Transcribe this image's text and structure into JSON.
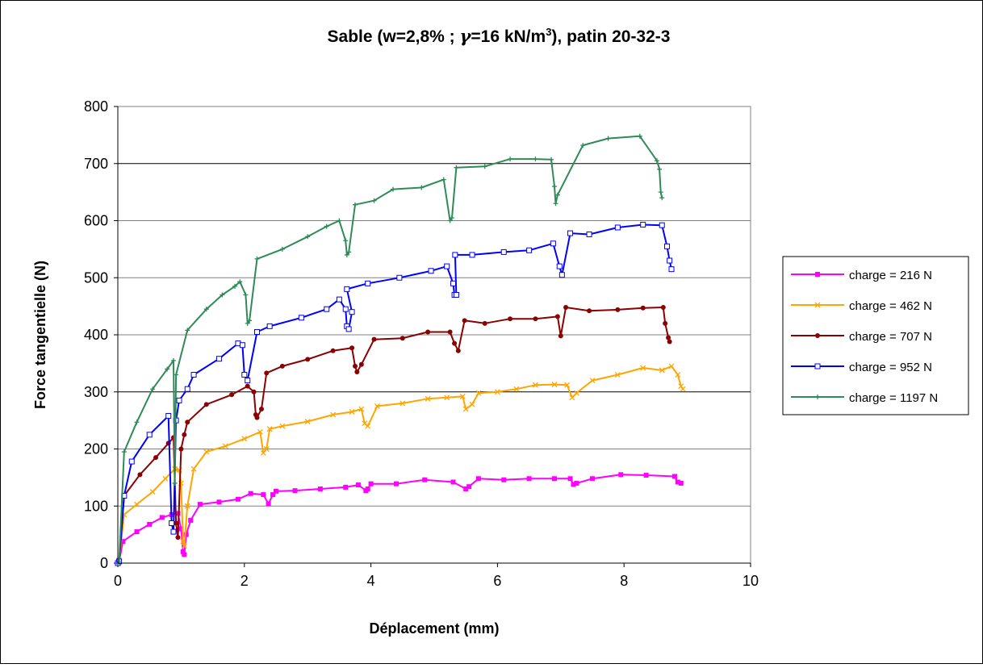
{
  "chart_data": {
    "type": "line",
    "title": "Sable (w=2,8% ; γ=16 kN/m³), patin 20-32-3",
    "title_parts": {
      "main": "Sable (w=2,8% ; ",
      "gamma": "γ",
      "eq": "=16 kN/m",
      "sup": "3",
      "tail": "), patin 20-32-3"
    },
    "xlabel": "Déplacement (mm)",
    "ylabel": "Force tangentielle (N)",
    "xlim": [
      0,
      10
    ],
    "ylim": [
      0,
      800
    ],
    "x_ticks": [
      "0",
      "2",
      "4",
      "6",
      "8",
      "10"
    ],
    "y_ticks": [
      "0",
      "100",
      "200",
      "300",
      "400",
      "500",
      "600",
      "700",
      "800"
    ],
    "grid": "horizontal",
    "legend_position": "right",
    "series": [
      {
        "name": "charge = 216 N",
        "color": "#ff00ff",
        "marker": "square",
        "points": [
          [
            0,
            0
          ],
          [
            0.02,
            3
          ],
          [
            0.08,
            38
          ],
          [
            0.3,
            55
          ],
          [
            0.5,
            68
          ],
          [
            0.7,
            80
          ],
          [
            0.85,
            85
          ],
          [
            0.95,
            87
          ],
          [
            1.0,
            60
          ],
          [
            1.03,
            20
          ],
          [
            1.05,
            15
          ],
          [
            1.08,
            50
          ],
          [
            1.15,
            75
          ],
          [
            1.3,
            103
          ],
          [
            1.6,
            107
          ],
          [
            1.9,
            112
          ],
          [
            2.1,
            122
          ],
          [
            2.3,
            120
          ],
          [
            2.38,
            104
          ],
          [
            2.45,
            120
          ],
          [
            2.5,
            126
          ],
          [
            2.8,
            127
          ],
          [
            3.2,
            130
          ],
          [
            3.6,
            133
          ],
          [
            3.8,
            137
          ],
          [
            3.92,
            127
          ],
          [
            3.95,
            130
          ],
          [
            4.0,
            139
          ],
          [
            4.4,
            139
          ],
          [
            4.85,
            146
          ],
          [
            5.3,
            142
          ],
          [
            5.5,
            130
          ],
          [
            5.55,
            134
          ],
          [
            5.7,
            148
          ],
          [
            6.1,
            146
          ],
          [
            6.5,
            148
          ],
          [
            6.9,
            148
          ],
          [
            7.15,
            148
          ],
          [
            7.2,
            138
          ],
          [
            7.25,
            140
          ],
          [
            7.5,
            148
          ],
          [
            7.95,
            155
          ],
          [
            8.35,
            154
          ],
          [
            8.8,
            152
          ],
          [
            8.85,
            142
          ],
          [
            8.9,
            140
          ]
        ]
      },
      {
        "name": "charge = 462 N",
        "color": "#ffa500",
        "marker": "x",
        "points": [
          [
            0,
            0
          ],
          [
            0.02,
            5
          ],
          [
            0.1,
            85
          ],
          [
            0.3,
            103
          ],
          [
            0.55,
            125
          ],
          [
            0.75,
            148
          ],
          [
            0.9,
            165
          ],
          [
            0.97,
            163
          ],
          [
            1.0,
            140
          ],
          [
            1.03,
            38
          ],
          [
            1.05,
            30
          ],
          [
            1.1,
            100
          ],
          [
            1.2,
            165
          ],
          [
            1.4,
            195
          ],
          [
            1.7,
            205
          ],
          [
            2.0,
            218
          ],
          [
            2.25,
            230
          ],
          [
            2.3,
            193
          ],
          [
            2.35,
            200
          ],
          [
            2.4,
            235
          ],
          [
            2.6,
            240
          ],
          [
            3.0,
            248
          ],
          [
            3.4,
            260
          ],
          [
            3.7,
            265
          ],
          [
            3.85,
            270
          ],
          [
            3.9,
            245
          ],
          [
            3.95,
            240
          ],
          [
            4.1,
            275
          ],
          [
            4.5,
            280
          ],
          [
            4.9,
            288
          ],
          [
            5.2,
            290
          ],
          [
            5.45,
            292
          ],
          [
            5.5,
            270
          ],
          [
            5.6,
            278
          ],
          [
            5.7,
            298
          ],
          [
            6.0,
            300
          ],
          [
            6.3,
            305
          ],
          [
            6.6,
            312
          ],
          [
            6.9,
            313
          ],
          [
            7.1,
            312
          ],
          [
            7.18,
            290
          ],
          [
            7.25,
            298
          ],
          [
            7.5,
            320
          ],
          [
            7.9,
            330
          ],
          [
            8.3,
            342
          ],
          [
            8.6,
            338
          ],
          [
            8.75,
            345
          ],
          [
            8.85,
            330
          ],
          [
            8.9,
            310
          ],
          [
            8.93,
            305
          ]
        ]
      },
      {
        "name": "charge = 707 N",
        "color": "#8b0000",
        "marker": "circle",
        "points": [
          [
            0,
            0
          ],
          [
            0.02,
            3
          ],
          [
            0.1,
            118
          ],
          [
            0.35,
            155
          ],
          [
            0.6,
            185
          ],
          [
            0.8,
            210
          ],
          [
            0.88,
            220
          ],
          [
            0.92,
            70
          ],
          [
            0.95,
            45
          ],
          [
            1.0,
            200
          ],
          [
            1.05,
            225
          ],
          [
            1.1,
            247
          ],
          [
            1.4,
            278
          ],
          [
            1.8,
            295
          ],
          [
            2.05,
            310
          ],
          [
            2.15,
            300
          ],
          [
            2.18,
            260
          ],
          [
            2.2,
            255
          ],
          [
            2.27,
            270
          ],
          [
            2.35,
            333
          ],
          [
            2.6,
            345
          ],
          [
            3.0,
            357
          ],
          [
            3.4,
            372
          ],
          [
            3.7,
            377
          ],
          [
            3.75,
            345
          ],
          [
            3.78,
            335
          ],
          [
            3.85,
            348
          ],
          [
            4.05,
            392
          ],
          [
            4.5,
            394
          ],
          [
            4.9,
            405
          ],
          [
            5.25,
            405
          ],
          [
            5.32,
            385
          ],
          [
            5.38,
            372
          ],
          [
            5.48,
            425
          ],
          [
            5.8,
            420
          ],
          [
            6.2,
            428
          ],
          [
            6.6,
            428
          ],
          [
            6.95,
            432
          ],
          [
            7.0,
            398
          ],
          [
            7.08,
            448
          ],
          [
            7.45,
            442
          ],
          [
            7.9,
            444
          ],
          [
            8.3,
            447
          ],
          [
            8.62,
            448
          ],
          [
            8.65,
            420
          ],
          [
            8.7,
            395
          ],
          [
            8.72,
            388
          ]
        ]
      },
      {
        "name": "charge = 952 N",
        "color": "#0000ff",
        "marker": "openSquare",
        "points": [
          [
            0,
            0
          ],
          [
            0.02,
            3
          ],
          [
            0.1,
            118
          ],
          [
            0.22,
            178
          ],
          [
            0.5,
            225
          ],
          [
            0.8,
            258
          ],
          [
            0.85,
            70
          ],
          [
            0.88,
            55
          ],
          [
            0.92,
            250
          ],
          [
            0.97,
            285
          ],
          [
            1.1,
            305
          ],
          [
            1.2,
            330
          ],
          [
            1.6,
            358
          ],
          [
            1.9,
            385
          ],
          [
            1.97,
            382
          ],
          [
            2.0,
            330
          ],
          [
            2.05,
            320
          ],
          [
            2.2,
            405
          ],
          [
            2.4,
            415
          ],
          [
            2.9,
            430
          ],
          [
            3.3,
            445
          ],
          [
            3.5,
            462
          ],
          [
            3.6,
            445
          ],
          [
            3.62,
            415
          ],
          [
            3.65,
            410
          ],
          [
            3.7,
            440
          ],
          [
            3.62,
            480
          ],
          [
            3.95,
            490
          ],
          [
            4.45,
            500
          ],
          [
            4.95,
            512
          ],
          [
            5.2,
            520
          ],
          [
            5.3,
            490
          ],
          [
            5.32,
            470
          ],
          [
            5.35,
            470
          ],
          [
            5.33,
            540
          ],
          [
            5.6,
            540
          ],
          [
            6.1,
            545
          ],
          [
            6.5,
            548
          ],
          [
            6.88,
            560
          ],
          [
            6.98,
            520
          ],
          [
            7.02,
            505
          ],
          [
            7.15,
            578
          ],
          [
            7.45,
            576
          ],
          [
            7.9,
            588
          ],
          [
            8.3,
            593
          ],
          [
            8.6,
            592
          ],
          [
            8.68,
            555
          ],
          [
            8.72,
            530
          ],
          [
            8.75,
            515
          ]
        ]
      },
      {
        "name": "charge = 1197 N",
        "color": "#2e8b57",
        "marker": "plus",
        "points": [
          [
            0,
            0
          ],
          [
            0.02,
            3
          ],
          [
            0.1,
            195
          ],
          [
            0.3,
            247
          ],
          [
            0.55,
            305
          ],
          [
            0.78,
            340
          ],
          [
            0.88,
            355
          ],
          [
            0.9,
            140
          ],
          [
            0.92,
            330
          ],
          [
            1.1,
            408
          ],
          [
            1.4,
            445
          ],
          [
            1.65,
            470
          ],
          [
            1.85,
            485
          ],
          [
            1.93,
            493
          ],
          [
            2.02,
            470
          ],
          [
            2.05,
            420
          ],
          [
            2.08,
            425
          ],
          [
            2.2,
            533
          ],
          [
            2.6,
            550
          ],
          [
            3.0,
            572
          ],
          [
            3.3,
            590
          ],
          [
            3.5,
            600
          ],
          [
            3.6,
            565
          ],
          [
            3.62,
            540
          ],
          [
            3.65,
            545
          ],
          [
            3.75,
            628
          ],
          [
            4.05,
            635
          ],
          [
            4.35,
            655
          ],
          [
            4.8,
            658
          ],
          [
            5.15,
            672
          ],
          [
            5.25,
            600
          ],
          [
            5.28,
            605
          ],
          [
            5.35,
            693
          ],
          [
            5.8,
            695
          ],
          [
            6.2,
            708
          ],
          [
            6.6,
            708
          ],
          [
            6.85,
            707
          ],
          [
            6.9,
            660
          ],
          [
            6.92,
            630
          ],
          [
            6.95,
            645
          ],
          [
            7.35,
            732
          ],
          [
            7.75,
            744
          ],
          [
            8.25,
            748
          ],
          [
            8.52,
            705
          ],
          [
            8.56,
            690
          ],
          [
            8.58,
            650
          ],
          [
            8.6,
            640
          ]
        ]
      }
    ]
  }
}
